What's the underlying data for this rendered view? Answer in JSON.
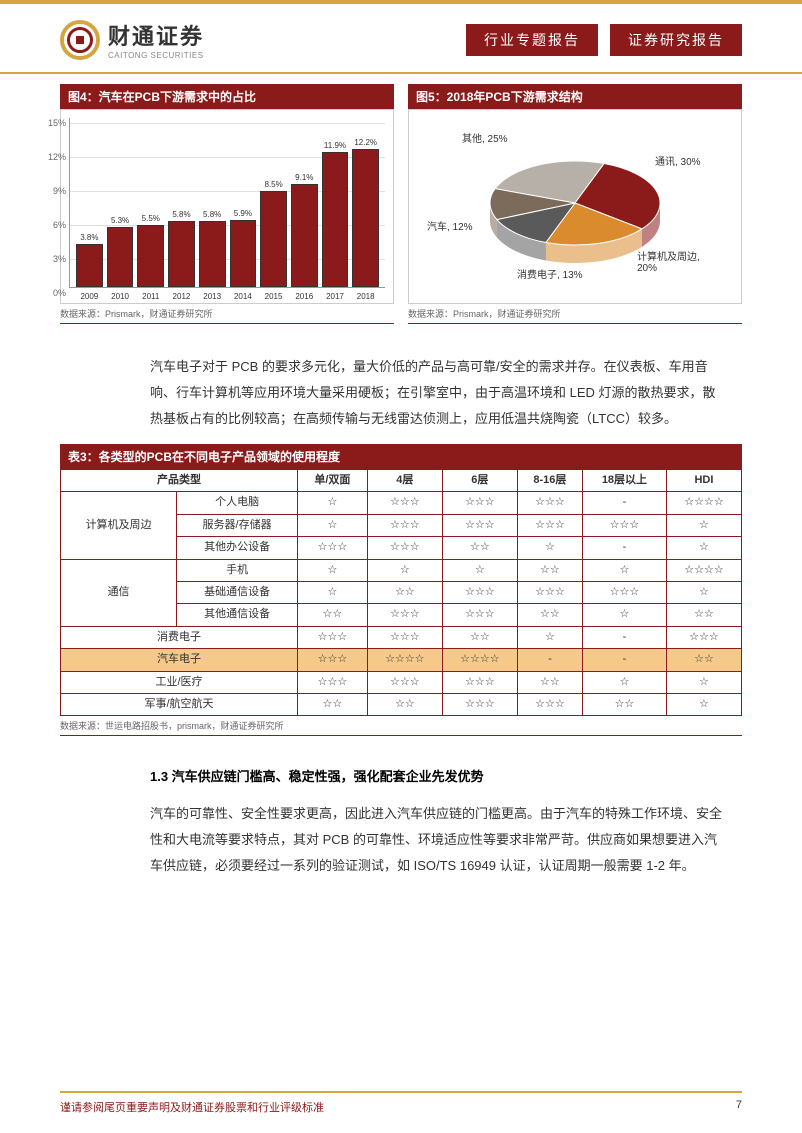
{
  "header": {
    "logo_cn": "财通证券",
    "logo_en": "CAITONG SECURITIES",
    "badge1": "行业专题报告",
    "badge2": "证券研究报告"
  },
  "chart4": {
    "title": "图4：汽车在PCB下游需求中的占比",
    "type": "bar",
    "background_color": "#ffffff",
    "grid_color": "#e0e0e0",
    "axis_color": "#999999",
    "bar_color": "#8b1a1a",
    "bar_border": "#333333",
    "ymax": 15,
    "ytick_step": 3,
    "ytick_labels": [
      "0%",
      "3%",
      "6%",
      "9%",
      "12%",
      "15%"
    ],
    "categories": [
      "2009",
      "2010",
      "2011",
      "2012",
      "2013",
      "2014",
      "2015",
      "2016",
      "2017",
      "2018"
    ],
    "values": [
      3.8,
      5.3,
      5.5,
      5.8,
      5.8,
      5.9,
      8.5,
      9.1,
      11.9,
      12.2
    ],
    "value_labels": [
      "3.8%",
      "5.3%",
      "5.5%",
      "5.8%",
      "5.8%",
      "5.9%",
      "8.5%",
      "9.1%",
      "11.9%",
      "12.2%"
    ],
    "source": "数据来源：Prismark，财通证券研究所"
  },
  "chart5": {
    "title": "图5：2018年PCB下游需求结构",
    "type": "pie",
    "slices": [
      {
        "label": "其他, 25%",
        "value": 25,
        "color": "#b7b0a8"
      },
      {
        "label": "通讯, 30%",
        "value": 30,
        "color": "#8b1a1a"
      },
      {
        "label": "计算机及周边, 20%",
        "value": 20,
        "color": "#d98b2e"
      },
      {
        "label": "消费电子, 13%",
        "value": 13,
        "color": "#5a5a5a"
      },
      {
        "label": "汽车, 12%",
        "value": 12,
        "color": "#7c6a5a"
      }
    ],
    "source": "数据来源：Prismark，财通证券研究所"
  },
  "para1": "汽车电子对于 PCB 的要求多元化，量大价低的产品与高可靠/安全的需求并存。在仪表板、车用音响、行车计算机等应用环境大量采用硬板；在引擎室中，由于高温环境和 LED 灯源的散热要求，散热基板占有的比例较高；在高频传输与无线雷达侦测上，应用低温共烧陶瓷（LTCC）较多。",
  "table3": {
    "title": "表3：各类型的PCB在不同电子产品领域的使用程度",
    "columns": [
      "产品类型",
      "",
      "单/双面",
      "4层",
      "6层",
      "8-16层",
      "18层以上",
      "HDI"
    ],
    "group1_label": "计算机及周边",
    "group1_rows": [
      {
        "sub": "个人电脑",
        "vals": [
          "☆",
          "☆☆☆",
          "☆☆☆",
          "☆☆☆",
          "-",
          "☆☆☆☆"
        ]
      },
      {
        "sub": "服务器/存储器",
        "vals": [
          "☆",
          "☆☆☆",
          "☆☆☆",
          "☆☆☆",
          "☆☆☆",
          "☆"
        ]
      },
      {
        "sub": "其他办公设备",
        "vals": [
          "☆☆☆",
          "☆☆☆",
          "☆☆",
          "☆",
          "-",
          "☆"
        ]
      }
    ],
    "group2_label": "通信",
    "group2_rows": [
      {
        "sub": "手机",
        "vals": [
          "☆",
          "☆",
          "☆",
          "☆☆",
          "☆",
          "☆☆☆☆"
        ]
      },
      {
        "sub": "基础通信设备",
        "vals": [
          "☆",
          "☆☆",
          "☆☆☆",
          "☆☆☆",
          "☆☆☆",
          "☆"
        ]
      },
      {
        "sub": "其他通信设备",
        "vals": [
          "☆☆",
          "☆☆☆",
          "☆☆☆",
          "☆☆",
          "☆",
          "☆☆"
        ]
      }
    ],
    "flat_rows": [
      {
        "label": "消费电子",
        "vals": [
          "☆☆☆",
          "☆☆☆",
          "☆☆",
          "☆",
          "-",
          "☆☆☆"
        ],
        "highlight": false
      },
      {
        "label": "汽车电子",
        "vals": [
          "☆☆☆",
          "☆☆☆☆",
          "☆☆☆☆",
          "-",
          "-",
          "☆☆"
        ],
        "highlight": true
      },
      {
        "label": "工业/医疗",
        "vals": [
          "☆☆☆",
          "☆☆☆",
          "☆☆☆",
          "☆☆",
          "☆",
          "☆"
        ],
        "highlight": false
      },
      {
        "label": "军事/航空航天",
        "vals": [
          "☆☆",
          "☆☆",
          "☆☆☆",
          "☆☆☆",
          "☆☆",
          "☆"
        ],
        "highlight": false
      }
    ],
    "source": "数据来源：世运电路招股书，prismark，财通证券研究所"
  },
  "sec_heading": "1.3  汽车供应链门槛高、稳定性强，强化配套企业先发优势",
  "para2": "汽车的可靠性、安全性要求更高，因此进入汽车供应链的门槛更高。由于汽车的特殊工作环境、安全性和大电流等要求特点，其对 PCB 的可靠性、环境适应性等要求非常严苛。供应商如果想要进入汽车供应链，必须要经过一系列的验证测试，如 ISO/TS 16949 认证，认证周期一般需要 1-2 年。",
  "footer": {
    "disclaimer": "谨请参阅尾页重要声明及财通证券股票和行业评级标准",
    "page": "7"
  }
}
